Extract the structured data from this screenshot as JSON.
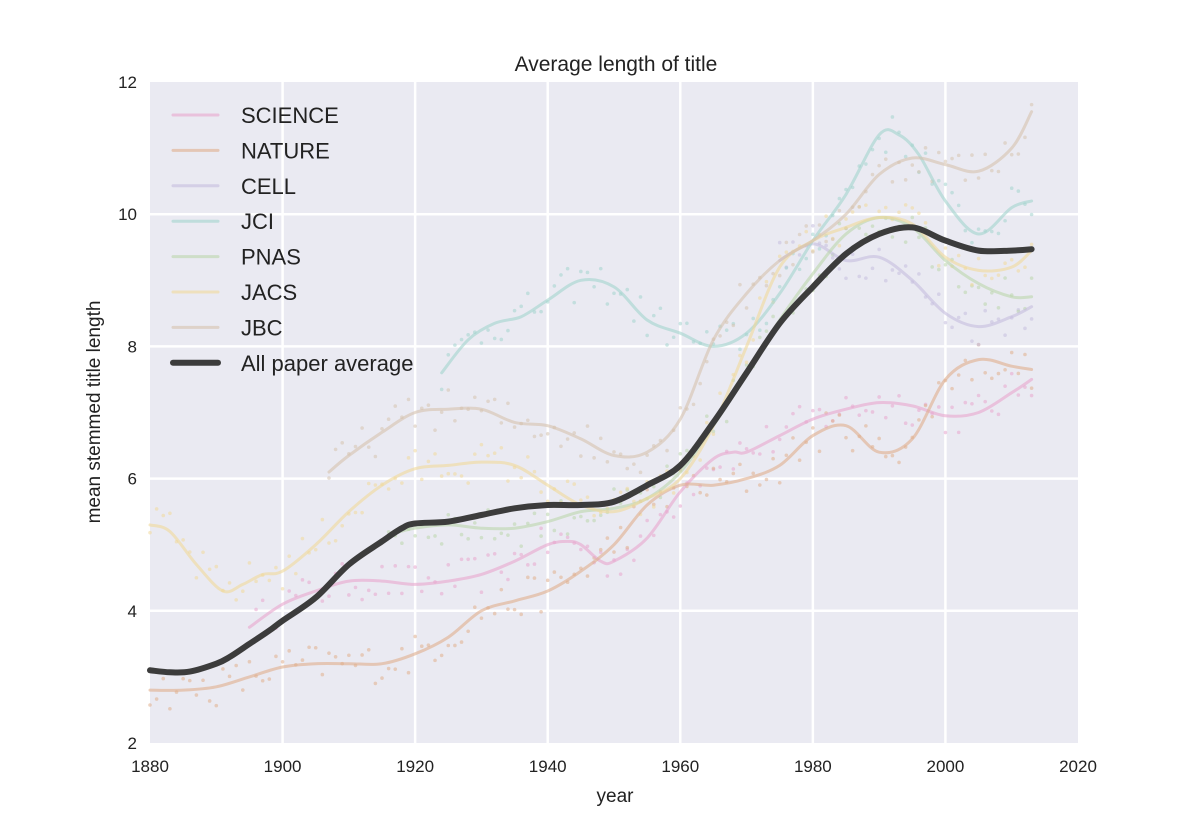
{
  "chart_data": {
    "type": "line",
    "title": "Average length of title",
    "xlabel": "year",
    "ylabel": "mean stemmed title length",
    "xlim": [
      1880,
      2020
    ],
    "ylim": [
      2,
      12
    ],
    "xticks": [
      1880,
      1900,
      1920,
      1940,
      1960,
      1980,
      2000,
      2020
    ],
    "yticks": [
      2,
      4,
      6,
      8,
      10,
      12
    ],
    "grid": true,
    "background": "#EAEAF2",
    "legend_position": "top-left",
    "series": [
      {
        "name": "SCIENCE",
        "color": "#E8A5CD",
        "opacity": 0.6,
        "width": 3,
        "x": [
          1895,
          1900,
          1905,
          1910,
          1915,
          1920,
          1925,
          1930,
          1935,
          1940,
          1943,
          1945,
          1948,
          1950,
          1955,
          1960,
          1965,
          1968,
          1970,
          1975,
          1980,
          1985,
          1990,
          1995,
          2000,
          2005,
          2010,
          2013
        ],
        "y": [
          3.75,
          4.1,
          4.3,
          4.45,
          4.45,
          4.4,
          4.45,
          4.55,
          4.75,
          5.0,
          5.05,
          5.0,
          4.75,
          4.75,
          5.1,
          5.8,
          6.3,
          6.4,
          6.4,
          6.65,
          6.9,
          7.05,
          7.15,
          7.1,
          6.95,
          7.0,
          7.3,
          7.5
        ]
      },
      {
        "name": "NATURE",
        "color": "#E0AE8C",
        "opacity": 0.6,
        "width": 3,
        "x": [
          1880,
          1885,
          1890,
          1895,
          1900,
          1905,
          1910,
          1915,
          1920,
          1925,
          1930,
          1935,
          1940,
          1945,
          1950,
          1955,
          1960,
          1965,
          1970,
          1975,
          1980,
          1985,
          1990,
          1995,
          2000,
          2005,
          2010,
          2013
        ],
        "y": [
          2.8,
          2.8,
          2.85,
          3.0,
          3.15,
          3.2,
          3.2,
          3.2,
          3.35,
          3.6,
          4.0,
          4.15,
          4.3,
          4.6,
          5.0,
          5.6,
          5.9,
          5.9,
          6.0,
          6.2,
          6.65,
          6.8,
          6.4,
          6.6,
          7.5,
          7.8,
          7.7,
          7.65
        ]
      },
      {
        "name": "CELL",
        "color": "#C4BDDE",
        "opacity": 0.6,
        "width": 3,
        "x": [
          1975,
          1980,
          1985,
          1990,
          1995,
          2000,
          2005,
          2010,
          2013
        ],
        "y": [
          9.3,
          9.55,
          9.3,
          9.35,
          9.0,
          8.5,
          8.3,
          8.45,
          8.6
        ]
      },
      {
        "name": "JCI",
        "color": "#A2D4CD",
        "opacity": 0.6,
        "width": 3,
        "x": [
          1924,
          1928,
          1932,
          1936,
          1940,
          1945,
          1950,
          1955,
          1960,
          1965,
          1970,
          1975,
          1980,
          1985,
          1990,
          1993,
          1996,
          2000,
          2005,
          2010,
          2013
        ],
        "y": [
          7.6,
          8.1,
          8.35,
          8.45,
          8.7,
          9.0,
          8.9,
          8.4,
          8.2,
          8.0,
          8.2,
          8.8,
          9.6,
          10.3,
          11.2,
          11.2,
          10.9,
          10.2,
          9.7,
          10.1,
          10.2
        ]
      },
      {
        "name": "PNAS",
        "color": "#BAD6AB",
        "opacity": 0.6,
        "width": 3,
        "x": [
          1916,
          1920,
          1925,
          1930,
          1935,
          1940,
          1945,
          1950,
          1955,
          1960,
          1965,
          1970,
          1975,
          1980,
          1985,
          1990,
          1995,
          2000,
          2005,
          2010,
          2013
        ],
        "y": [
          5.15,
          5.25,
          5.3,
          5.25,
          5.25,
          5.35,
          5.5,
          5.55,
          5.7,
          6.1,
          6.8,
          7.6,
          8.4,
          9.1,
          9.7,
          9.95,
          9.8,
          9.3,
          8.95,
          8.75,
          8.75
        ]
      },
      {
        "name": "JACS",
        "color": "#F0D89A",
        "opacity": 0.6,
        "width": 3,
        "x": [
          1880,
          1883,
          1887,
          1891,
          1894,
          1897,
          1900,
          1905,
          1910,
          1915,
          1920,
          1925,
          1930,
          1935,
          1940,
          1945,
          1950,
          1955,
          1960,
          1965,
          1970,
          1975,
          1980,
          1985,
          1990,
          1995,
          2000,
          2005,
          2010,
          2013
        ],
        "y": [
          5.3,
          5.2,
          4.7,
          4.3,
          4.4,
          4.55,
          4.6,
          5.0,
          5.5,
          5.9,
          6.15,
          6.2,
          6.25,
          6.2,
          5.9,
          5.6,
          5.5,
          5.7,
          6.0,
          6.8,
          8.0,
          9.2,
          9.6,
          9.8,
          9.95,
          9.85,
          9.35,
          9.15,
          9.2,
          9.45
        ]
      },
      {
        "name": "JBC",
        "color": "#D5C2AE",
        "opacity": 0.6,
        "width": 3,
        "x": [
          1907,
          1910,
          1915,
          1920,
          1925,
          1930,
          1935,
          1940,
          1945,
          1950,
          1955,
          1960,
          1965,
          1970,
          1975,
          1980,
          1985,
          1990,
          1995,
          2000,
          2005,
          2010,
          2013
        ],
        "y": [
          6.1,
          6.35,
          6.7,
          7.0,
          7.05,
          7.05,
          6.85,
          6.8,
          6.6,
          6.35,
          6.4,
          6.9,
          8.1,
          8.8,
          9.3,
          9.6,
          10.0,
          10.6,
          10.85,
          10.75,
          10.65,
          11.0,
          11.55
        ]
      },
      {
        "name": "All paper average",
        "color": "#3C3C3C",
        "opacity": 1,
        "width": 6,
        "x": [
          1880,
          1883,
          1886,
          1890,
          1892,
          1895,
          1898,
          1900,
          1905,
          1910,
          1915,
          1918,
          1920,
          1925,
          1930,
          1935,
          1940,
          1945,
          1950,
          1955,
          1960,
          1965,
          1970,
          1975,
          1980,
          1985,
          1990,
          1995,
          2000,
          2005,
          2010,
          2013
        ],
        "y": [
          3.1,
          3.07,
          3.08,
          3.2,
          3.3,
          3.5,
          3.7,
          3.85,
          4.2,
          4.7,
          5.05,
          5.25,
          5.32,
          5.35,
          5.45,
          5.55,
          5.6,
          5.6,
          5.65,
          5.9,
          6.2,
          6.85,
          7.6,
          8.35,
          8.9,
          9.4,
          9.7,
          9.8,
          9.6,
          9.45,
          9.45,
          9.47
        ]
      }
    ]
  }
}
